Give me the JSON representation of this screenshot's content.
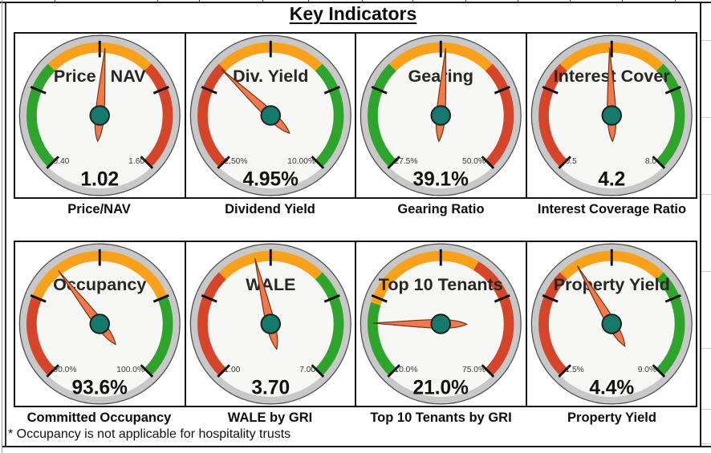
{
  "page": {
    "title": "Key Indicators",
    "footnote": "* Occupancy is not applicable for hospitality trusts"
  },
  "palette": {
    "green": "#2FA42C",
    "orange": "#F9A11B",
    "red": "#D5452A",
    "needle": "#F2794E",
    "needle_outline": "#6B3410",
    "hub": "#157A6C",
    "hub_outline": "#1F1F1F",
    "dial_face": "#F7F7F5",
    "dial_ring": "#C8C8C8",
    "dial_outline": "#4A4A4A",
    "tick": "#111111",
    "minmax_text": "#3A3A3A",
    "value_text": "#111111",
    "dial_title_text": "#262626"
  },
  "chart_data": [
    {
      "type": "gauge",
      "dial_title": "Price / NAV",
      "caption": "Price/NAV",
      "min": 0.4,
      "max": 1.6,
      "value": 1.02,
      "min_label": "0.40",
      "max_label": "1.60",
      "value_label": "1.02",
      "bands": [
        {
          "from": 0.4,
          "to": 0.8,
          "color": "green"
        },
        {
          "from": 0.8,
          "to": 1.2,
          "color": "orange"
        },
        {
          "from": 1.2,
          "to": 1.6,
          "color": "red"
        }
      ]
    },
    {
      "type": "gauge",
      "dial_title": "Div. Yield",
      "caption": "Dividend Yield",
      "min": 2.5,
      "max": 10.0,
      "value": 4.95,
      "min_label": "2.50%",
      "max_label": "10.00%",
      "value_label": "4.95%",
      "bands": [
        {
          "from": 2.5,
          "to": 5.0,
          "color": "red"
        },
        {
          "from": 5.0,
          "to": 7.5,
          "color": "orange"
        },
        {
          "from": 7.5,
          "to": 10.0,
          "color": "green"
        }
      ]
    },
    {
      "type": "gauge",
      "dial_title": "Gearing",
      "caption": "Gearing Ratio",
      "min": 27.5,
      "max": 50.0,
      "value": 39.1,
      "min_label": "27.5%",
      "max_label": "50.0%",
      "value_label": "39.1%",
      "bands": [
        {
          "from": 27.5,
          "to": 35.0,
          "color": "green"
        },
        {
          "from": 35.0,
          "to": 42.5,
          "color": "orange"
        },
        {
          "from": 42.5,
          "to": 50.0,
          "color": "red"
        }
      ]
    },
    {
      "type": "gauge",
      "dial_title": "Interest Cover",
      "caption": "Interest Coverage Ratio",
      "min": 0.5,
      "max": 8.0,
      "value": 4.2,
      "min_label": "0.5",
      "max_label": "8.0",
      "value_label": "4.2",
      "bands": [
        {
          "from": 0.5,
          "to": 3.0,
          "color": "red"
        },
        {
          "from": 3.0,
          "to": 5.5,
          "color": "orange"
        },
        {
          "from": 5.5,
          "to": 8.0,
          "color": "green"
        }
      ]
    },
    {
      "type": "gauge",
      "dial_title": "Occupancy",
      "caption": "Committed Occupancy",
      "min": 90.0,
      "max": 100.0,
      "value": 93.6,
      "min_label": "90.0%",
      "max_label": "100.0%",
      "value_label": "93.6%",
      "bands": [
        {
          "from": 90.0,
          "to": 92.5,
          "color": "red"
        },
        {
          "from": 92.5,
          "to": 97.5,
          "color": "orange"
        },
        {
          "from": 97.5,
          "to": 100.0,
          "color": "green"
        }
      ]
    },
    {
      "type": "gauge",
      "dial_title": "WALE",
      "caption": "WALE by GRI",
      "min": 1.0,
      "max": 7.0,
      "value": 3.7,
      "min_label": "1.00",
      "max_label": "7.00",
      "value_label": "3.70",
      "bands": [
        {
          "from": 1.0,
          "to": 3.0,
          "color": "red"
        },
        {
          "from": 3.0,
          "to": 5.0,
          "color": "orange"
        },
        {
          "from": 5.0,
          "to": 7.0,
          "color": "green"
        }
      ]
    },
    {
      "type": "gauge",
      "dial_title": "Top 10 Tenants",
      "caption": "Top 10 Tenants by GRI",
      "min": 10.0,
      "max": 75.0,
      "value": 21.0,
      "min_label": "10.0%",
      "max_label": "75.0%",
      "value_label": "21.0%",
      "bands": [
        {
          "from": 10.0,
          "to": 25.0,
          "color": "green"
        },
        {
          "from": 25.0,
          "to": 50.0,
          "color": "orange"
        },
        {
          "from": 50.0,
          "to": 75.0,
          "color": "red"
        }
      ]
    },
    {
      "type": "gauge",
      "dial_title": "Property Yield",
      "caption": "Property Yield",
      "min": 1.5,
      "max": 9.0,
      "value": 4.4,
      "min_label": "1.5%",
      "max_label": "9.0%",
      "value_label": "4.4%",
      "bands": [
        {
          "from": 1.5,
          "to": 4.0,
          "color": "red"
        },
        {
          "from": 4.0,
          "to": 6.5,
          "color": "orange"
        },
        {
          "from": 6.5,
          "to": 9.0,
          "color": "green"
        }
      ]
    }
  ]
}
